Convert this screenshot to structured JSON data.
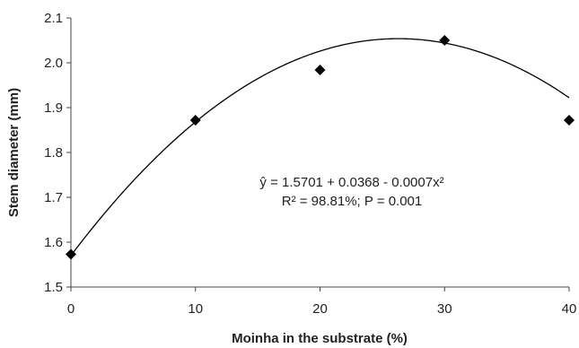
{
  "chart_data": {
    "type": "scatter",
    "xlabel": "Moinha in the substrate (%)",
    "ylabel": "Stem diameter (mm)",
    "xlim": [
      0,
      40
    ],
    "ylim": [
      1.5,
      2.1
    ],
    "x_ticks": [
      "0",
      "10",
      "20",
      "30",
      "40"
    ],
    "y_ticks": [
      "1.5",
      "1.6",
      "1.7",
      "1.8",
      "1.9",
      "2.0",
      "2.1"
    ],
    "grid": false,
    "marker": "diamond",
    "color": "#000000",
    "series": [
      {
        "x": [
          0,
          10,
          20,
          30,
          40
        ],
        "y": [
          1.573,
          1.872,
          1.984,
          2.05,
          1.872
        ]
      }
    ],
    "trendline": {
      "type": "polynomial",
      "coefficients": [
        1.5701,
        0.0368,
        -0.0007
      ]
    },
    "annotations": {
      "equation_line1": "ŷ = 1.5701 + 0.0368 - 0.0007x²",
      "equation_line2": "R² = 98.81%; P = 0.001"
    }
  }
}
